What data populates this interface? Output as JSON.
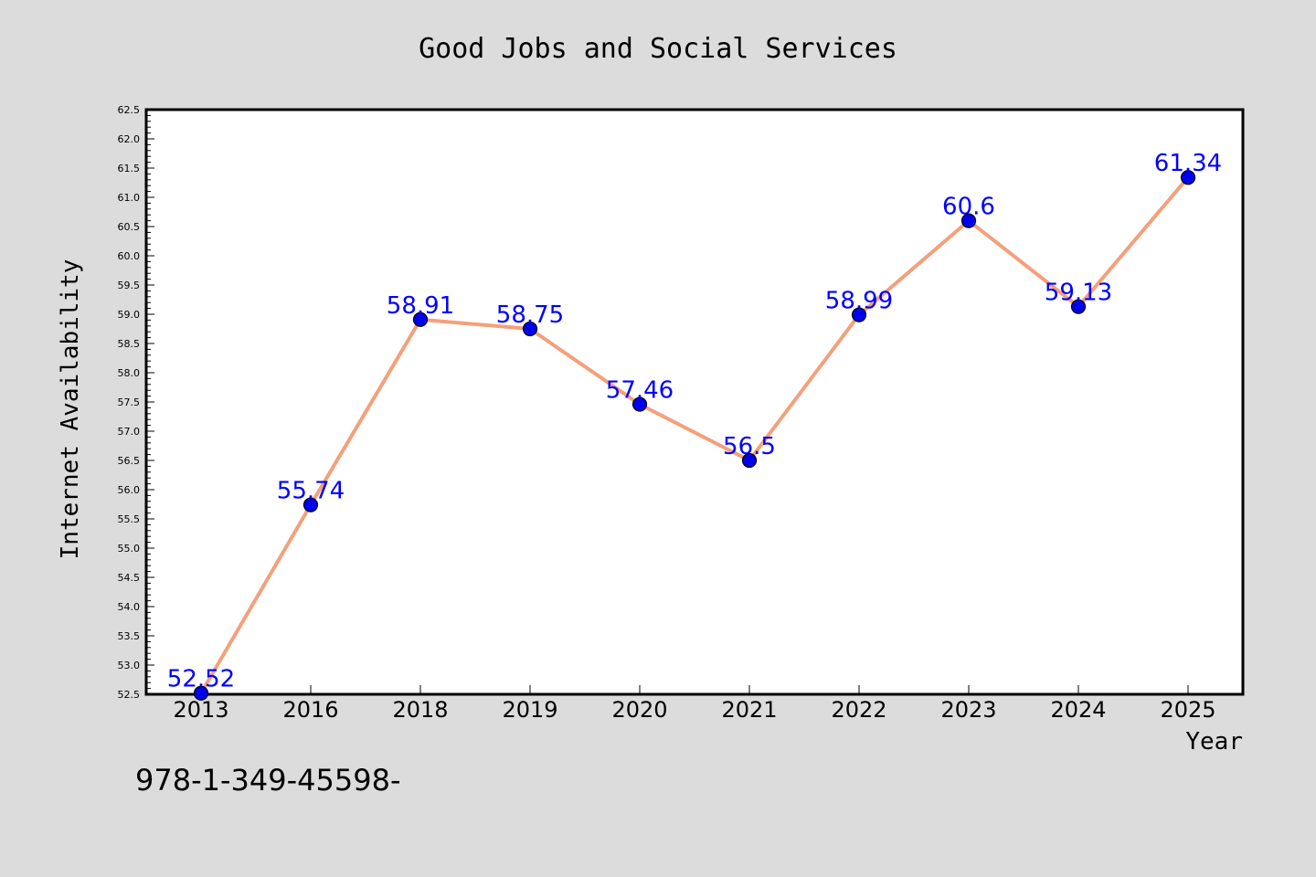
{
  "chart_data": {
    "type": "line",
    "title": "Good Jobs and Social Services",
    "xlabel": "Year",
    "ylabel": "Internet Availability",
    "categories": [
      "2013",
      "2016",
      "2018",
      "2019",
      "2020",
      "2021",
      "2022",
      "2023",
      "2024",
      "2025"
    ],
    "series": [
      {
        "values": [
          52.52,
          55.74,
          58.91,
          58.75,
          57.46,
          56.5,
          58.99,
          60.6,
          59.13,
          61.34
        ],
        "labels": [
          "52.52",
          "55.74",
          "58.91",
          "58.75",
          "57.46",
          "56.5",
          "58.99",
          "60.6",
          "59.13",
          "61.34"
        ]
      }
    ],
    "ylim": [
      52.5,
      62.5
    ],
    "ytick_step": 0.5,
    "yticks": [
      "52.5",
      "53.0",
      "53.5",
      "54.0",
      "54.5",
      "55.0",
      "55.5",
      "56.0",
      "56.5",
      "57.0",
      "57.5",
      "58.0",
      "58.5",
      "59.0",
      "59.5",
      "60.0",
      "60.5",
      "61.0",
      "61.5",
      "62.0",
      "62.5"
    ],
    "grid": false,
    "legend": "none",
    "colors": {
      "background": "#dcdcdc",
      "plot_background": "#ffffff",
      "line": "#f4a07a",
      "marker": "#0000ee",
      "data_label": "#0000ff"
    }
  },
  "footer": {
    "text": "978-1-349-45598-"
  }
}
